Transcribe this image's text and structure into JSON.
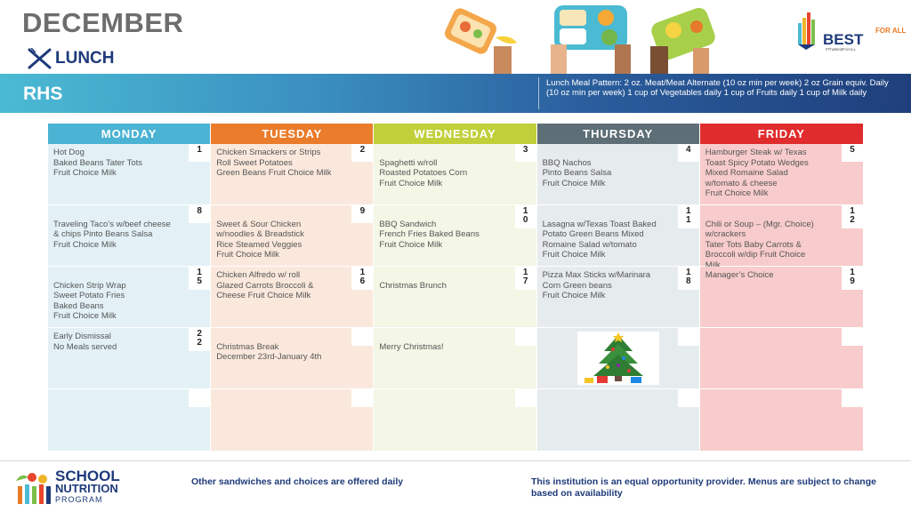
{
  "header": {
    "month": "DECEMBER",
    "meal_label": "LUNCH",
    "school": "RHS",
    "meal_pattern": "Lunch Meal Pattern: 2 oz. Meat/Meat Alternate (10 oz min per week) 2 oz Grain equiv. Daily (10 oz min per week) 1 cup of Vegetables daily 1 cup of Fruits daily 1 cup of Milk daily",
    "brand": "BEST",
    "brand_sub": "FOR ALL",
    "brand_tag": "#TheBestForALL"
  },
  "colors": {
    "monday": "#4bb3d3",
    "tuesday": "#ea7c2c",
    "wednesday": "#c1cf3a",
    "thursday": "#5e6e76",
    "friday": "#e02c2c",
    "navy": "#1e3a7a"
  },
  "days": [
    "MONDAY",
    "TUESDAY",
    "WEDNESDAY",
    "THURSDAY",
    "FRIDAY"
  ],
  "weeks": [
    [
      {
        "num": "1",
        "menu": "Hot Dog\nBaked Beans Tater Tots\nFruit Choice Milk"
      },
      {
        "num": "2",
        "menu": "Chicken Smackers or Strips\nRoll Sweet Potatoes\n Green Beans Fruit Choice Milk"
      },
      {
        "num": "3",
        "menu": "\nSpaghetti w/roll\n Roasted Potatoes Corn\nFruit Choice Milk"
      },
      {
        "num": "4",
        "menu": "\nBBQ Nachos\n Pinto Beans Salsa\nFruit Choice Milk"
      },
      {
        "num": "5",
        "menu": "Hamburger Steak w/ Texas\nToast Spicy Potato Wedges\nMixed Romaine Salad\nw/tomato & cheese\nFruit Choice Milk"
      }
    ],
    [
      {
        "num": "8",
        "menu": "\nTraveling Taco’s w/beef cheese\n& chips Pinto Beans Salsa\nFruit Choice Milk"
      },
      {
        "num": "9",
        "menu": "\nSweet & Sour Chicken\nw/noodles & Breadstick\nRice Steamed Veggies\nFruit Choice Milk"
      },
      {
        "num": "1\n0",
        "menu": "\nBBQ Sandwich\nFrench Fries Baked Beans\n Fruit Choice Milk"
      },
      {
        "num": "1\n1",
        "menu": "\nLasagna w/Texas Toast Baked\nPotato  Green Beans Mixed\nRomaine Salad w/tomato\nFruit Choice Milk"
      },
      {
        "num": "1\n2",
        "menu": "\nChili or Soup – (Mgr. Choice)\nw/crackers\nTater Tots Baby Carrots &\nBroccoli  w/dip Fruit Choice\nMilk"
      }
    ],
    [
      {
        "num": "1\n5",
        "menu": "\nChicken Strip Wrap\nSweet Potato Fries\nBaked Beans\n Fruit Choice Milk"
      },
      {
        "num": "1\n6",
        "menu": "Chicken Alfredo w/ roll\nGlazed Carrots Broccoli &\nCheese Fruit Choice Milk"
      },
      {
        "num": "1\n7",
        "menu": "\nChristmas Brunch"
      },
      {
        "num": "1\n8",
        "menu": "Pizza Max Sticks w/Marinara\nCorn Green beans\n Fruit Choice Milk"
      },
      {
        "num": "1\n9",
        "menu": "Manager’s Choice"
      }
    ],
    [
      {
        "num": "2\n2",
        "menu": "Early Dismissal\nNo Meals served"
      },
      {
        "num": "",
        "menu": "\nChristmas Break\nDecember 23rd-January 4th"
      },
      {
        "num": "",
        "menu": "\n Merry Christmas!"
      },
      {
        "num": "",
        "menu": ""
      },
      {
        "num": "",
        "menu": ""
      }
    ],
    [
      {
        "num": "",
        "menu": ""
      },
      {
        "num": "",
        "menu": ""
      },
      {
        "num": "",
        "menu": ""
      },
      {
        "num": "",
        "menu": ""
      },
      {
        "num": "",
        "menu": ""
      }
    ]
  ],
  "footer": {
    "program_line1": "SCHOOL",
    "program_line2": "NUTRITION",
    "program_line3": "PROGRAM",
    "note_left": "Other sandwiches and choices are offered daily",
    "note_right": "This institution is an equal opportunity provider. Menus are subject to change based on availability"
  }
}
